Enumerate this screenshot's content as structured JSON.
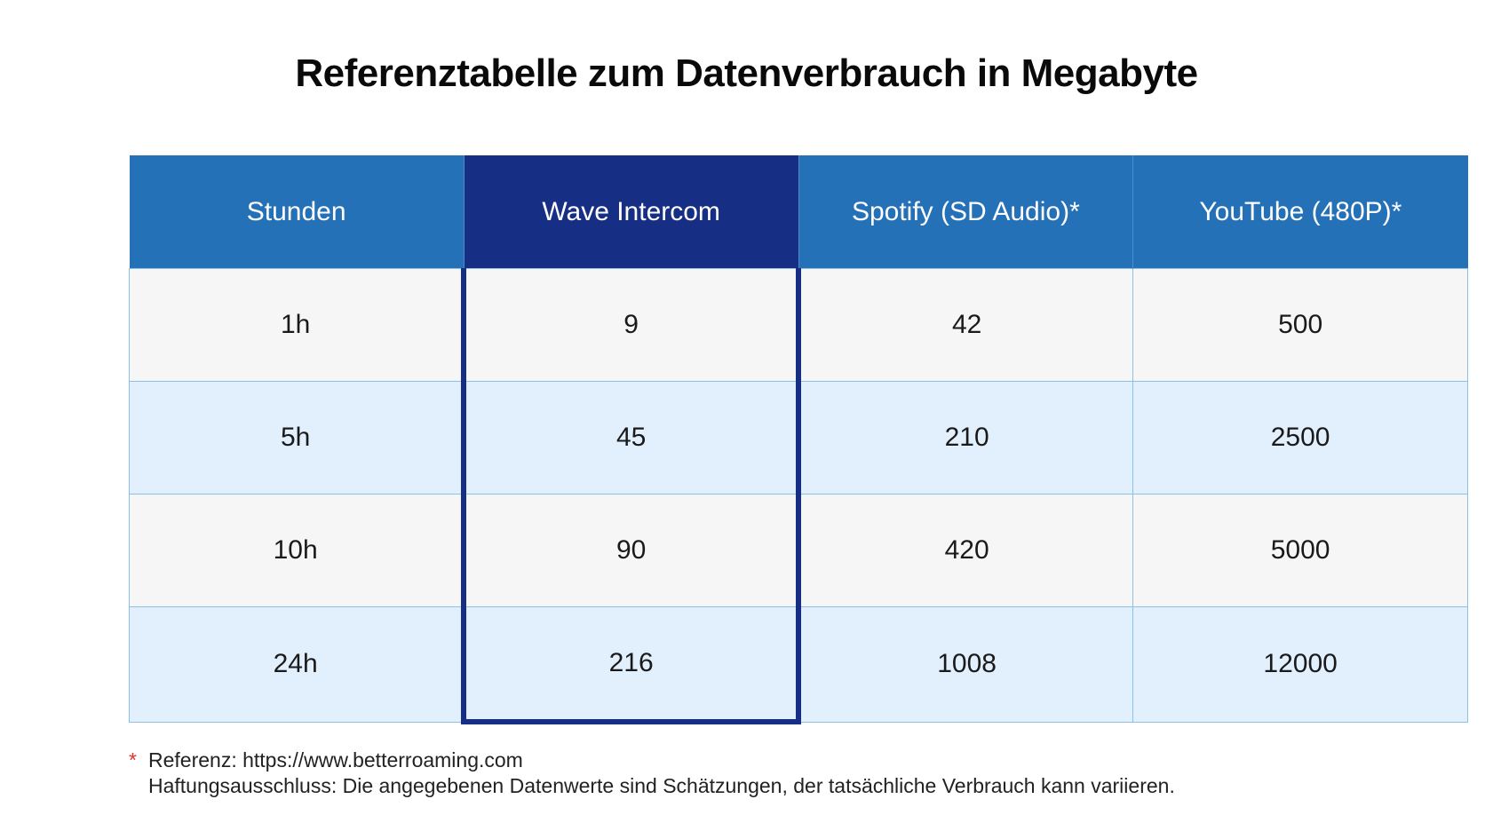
{
  "title": "Referenztabelle zum Datenverbrauch in Megabyte",
  "colors": {
    "header_blue": "#2471b8",
    "highlight_navy": "#162f85",
    "row_light": "#f6f6f6",
    "row_blue": "#e2effc",
    "asterisk_red": "#e0342b"
  },
  "table": {
    "headers": [
      "Stunden",
      "Wave Intercom",
      "Spotify (SD Audio)*",
      "YouTube (480P)*"
    ],
    "rows": [
      [
        "1h",
        "9",
        "42",
        "500"
      ],
      [
        "5h",
        "45",
        "210",
        "2500"
      ],
      [
        "10h",
        "90",
        "420",
        "5000"
      ],
      [
        "24h",
        "216",
        "1008",
        "12000"
      ]
    ]
  },
  "footnote": {
    "marker": "*",
    "reference": "Referenz: https://www.betterroaming.com",
    "disclaimer": "Haftungsausschluss: Die angegebenen Datenwerte sind Schätzungen, der tatsächliche Verbrauch kann variieren."
  }
}
